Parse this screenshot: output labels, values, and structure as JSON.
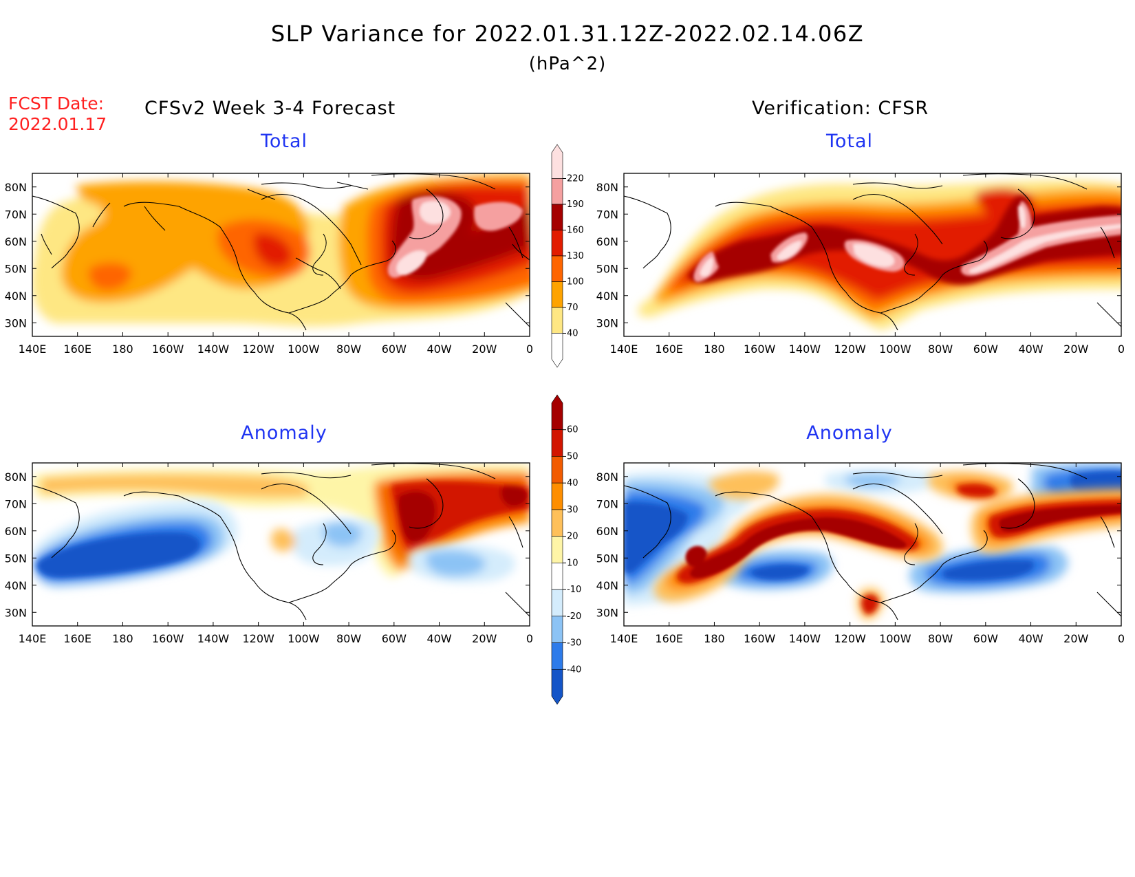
{
  "header": {
    "title": "SLP Variance for 2022.01.31.12Z-2022.02.14.06Z",
    "units": "(hPa^2)",
    "fcst_label": "FCST Date:",
    "fcst_date": "2022.01.17",
    "left_heading": "CFSv2 Week 3-4 Forecast",
    "right_heading": "Verification: CFSR"
  },
  "axes": {
    "lon_labels": [
      "140E",
      "160E",
      "180",
      "160W",
      "140W",
      "120W",
      "100W",
      "80W",
      "60W",
      "40W",
      "20W",
      "0"
    ],
    "lat_labels": [
      "30N",
      "40N",
      "50N",
      "60N",
      "70N",
      "80N"
    ],
    "lon_range": [
      140,
      360
    ],
    "lat_range": [
      25,
      85
    ]
  },
  "panels": [
    {
      "id": "fcst-total",
      "title": "Total",
      "field": "total"
    },
    {
      "id": "obs-total",
      "title": "Total",
      "field": "total"
    },
    {
      "id": "fcst-anom",
      "title": "Anomaly",
      "field": "anomaly"
    },
    {
      "id": "obs-anom",
      "title": "Anomaly",
      "field": "anomaly"
    }
  ],
  "colorbars": {
    "total": {
      "levels": [
        "40",
        "70",
        "100",
        "130",
        "160",
        "190",
        "220"
      ],
      "colors": [
        "#ffffff",
        "#fee783",
        "#fea300",
        "#fe6500",
        "#e21c00",
        "#a50000",
        "#f5a0a0",
        "#fde0e0"
      ]
    },
    "anomaly": {
      "levels": [
        "-40",
        "-30",
        "-20",
        "-10",
        "10",
        "20",
        "30",
        "40",
        "50",
        "60"
      ],
      "colors": [
        "#1455c8",
        "#2d7bea",
        "#8cc3f5",
        "#d4ecfc",
        "#ffffff",
        "#fef5a7",
        "#fec05a",
        "#fe8e00",
        "#f25b00",
        "#d21500",
        "#a50000"
      ]
    }
  },
  "chart_data": {
    "type": "heatmap",
    "title": "SLP Variance for 2022.01.31.12Z-2022.02.14.06Z",
    "subtitle": "(hPa^2)",
    "xlabel": "",
    "ylabel": "",
    "xlim": [
      140,
      360
    ],
    "ylim": [
      25,
      85
    ],
    "grid": false,
    "fields": {
      "fcst_total": [
        {
          "lon": 180,
          "lat": 43,
          "rx": 14,
          "ry": 6,
          "value": 120
        },
        {
          "lon": 175,
          "lat": 45,
          "rx": 28,
          "ry": 13,
          "value": 85
        },
        {
          "lon": 200,
          "lat": 60,
          "rx": 60,
          "ry": 20,
          "value": 55
        },
        {
          "lon": 245,
          "lat": 60,
          "rx": 28,
          "ry": 14,
          "value": 100
        },
        {
          "lon": 250,
          "lat": 58,
          "rx": 10,
          "ry": 6,
          "value": 140
        },
        {
          "lon": 225,
          "lat": 75,
          "rx": 70,
          "ry": 8,
          "value": 85
        },
        {
          "lon": 320,
          "lat": 57,
          "rx": 42,
          "ry": 28,
          "value": 150
        },
        {
          "lon": 305,
          "lat": 50,
          "rx": 18,
          "ry": 10,
          "value": 200
        },
        {
          "lon": 320,
          "lat": 72,
          "rx": 10,
          "ry": 7,
          "value": 205
        },
        {
          "lon": 345,
          "lat": 68,
          "rx": 14,
          "ry": 8,
          "value": 175
        }
      ],
      "obs_total": [
        {
          "lon": 185,
          "lat": 45,
          "rx": 12,
          "ry": 9,
          "value": 200
        },
        {
          "lon": 220,
          "lat": 55,
          "rx": 10,
          "ry": 6,
          "value": 200
        },
        {
          "lon": 270,
          "lat": 52,
          "rx": 12,
          "ry": 6,
          "value": 200
        },
        {
          "lon": 305,
          "lat": 47,
          "rx": 10,
          "ry": 5,
          "value": 200
        },
        {
          "lon": 320,
          "lat": 65,
          "rx": 8,
          "ry": 10,
          "value": 210
        },
        {
          "lon": 345,
          "lat": 62,
          "rx": 15,
          "ry": 5,
          "value": 205
        },
        {
          "lon": 250,
          "lat": 55,
          "rx": 100,
          "ry": 16,
          "value": 120
        },
        {
          "lon": 320,
          "lat": 68,
          "rx": 22,
          "ry": 10,
          "value": 150
        }
      ],
      "fcst_anomaly": [
        {
          "lon": 180,
          "lat": 52,
          "rx": 42,
          "ry": 12,
          "value": -35
        },
        {
          "lon": 320,
          "lat": 68,
          "rx": 22,
          "ry": 15,
          "value": 45
        },
        {
          "lon": 350,
          "lat": 73,
          "rx": 8,
          "ry": 4,
          "value": 50
        },
        {
          "lon": 230,
          "lat": 78,
          "rx": 60,
          "ry": 6,
          "value": 25
        },
        {
          "lon": 320,
          "lat": 45,
          "rx": 12,
          "ry": 6,
          "value": -20
        },
        {
          "lon": 280,
          "lat": 58,
          "rx": 8,
          "ry": 6,
          "value": -25
        }
      ],
      "obs_anomaly": [
        {
          "lon": 240,
          "lat": 58,
          "rx": 40,
          "ry": 8,
          "value": 55
        },
        {
          "lon": 182,
          "lat": 43,
          "rx": 10,
          "ry": 10,
          "value": 55
        },
        {
          "lon": 340,
          "lat": 63,
          "rx": 25,
          "ry": 4,
          "value": 55
        },
        {
          "lon": 157,
          "lat": 52,
          "rx": 16,
          "ry": 14,
          "value": -35
        },
        {
          "lon": 205,
          "lat": 42,
          "rx": 16,
          "ry": 5,
          "value": -30
        },
        {
          "lon": 325,
          "lat": 40,
          "rx": 30,
          "ry": 5,
          "value": -30
        },
        {
          "lon": 345,
          "lat": 78,
          "rx": 15,
          "ry": 6,
          "value": -35
        }
      ]
    }
  }
}
